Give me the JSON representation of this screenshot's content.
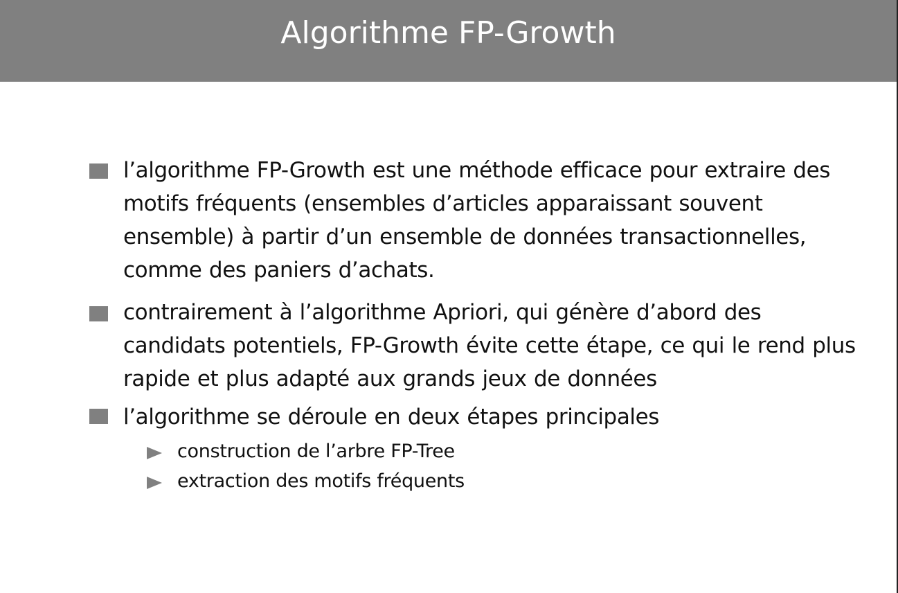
{
  "slide": {
    "title": "Algorithme FP-Growth",
    "colors": {
      "title_bar": "#808080",
      "title_text": "#ffffff",
      "bullet": "#808080",
      "body_text": "#111111"
    },
    "items": [
      {
        "icon": "square-bullet-icon",
        "text": "l’algorithme FP-Growth est une méthode efficace pour extraire des motifs fréquents (ensembles d’articles apparaissant souvent ensemble) à partir d’un ensemble de données transactionnelles, comme des paniers d’achats."
      },
      {
        "icon": "square-bullet-icon",
        "text": "contrairement à l’algorithme Apriori, qui génère d’abord des candidats potentiels, FP-Growth évite cette étape, ce qui le rend plus rapide et plus adapté aux grands jeux de données"
      },
      {
        "icon": "square-bullet-icon",
        "text": "l’algorithme se déroule en deux étapes principales",
        "subitems": [
          {
            "icon": "triangle-bullet-icon",
            "text": "construction de l’arbre FP-Tree"
          },
          {
            "icon": "triangle-bullet-icon",
            "text": "extraction des motifs fréquents"
          }
        ]
      }
    ]
  }
}
